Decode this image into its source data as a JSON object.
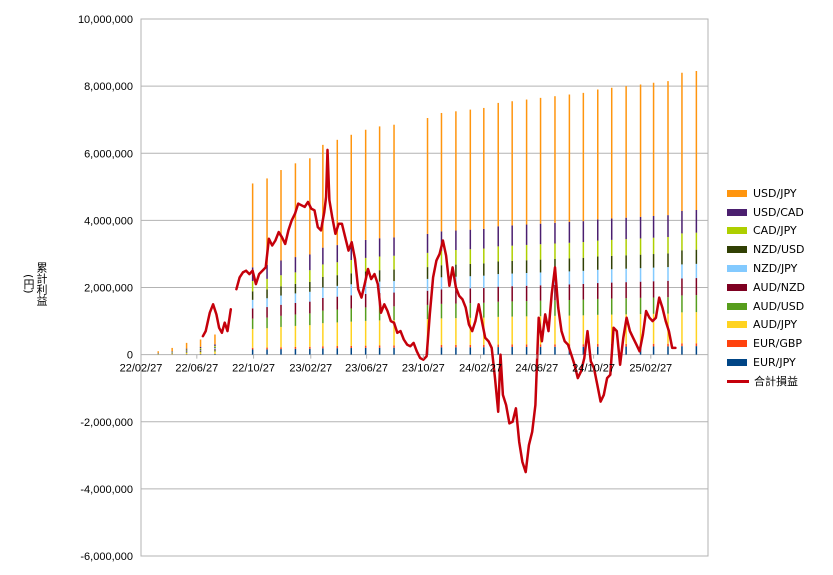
{
  "chart_data": {
    "type": "bar",
    "title": "",
    "xlabel": "",
    "ylabel": "累計利益\n(円)",
    "ylim": [
      -6000000,
      10000000
    ],
    "yticks": [
      "10,000,000",
      "8,000,000",
      "6,000,000",
      "4,000,000",
      "2,000,000",
      "0",
      "-2,000,000",
      "-4,000,000",
      "-6,000,000"
    ],
    "yticks_values": [
      10000000,
      8000000,
      6000000,
      4000000,
      2000000,
      0,
      -2000000,
      -4000000,
      -6000000
    ],
    "x_range": [
      "2022-02-27",
      "2025-06-30"
    ],
    "xticks": [
      "22/02/27",
      "22/06/27",
      "22/10/27",
      "23/02/27",
      "23/06/27",
      "23/10/27",
      "24/02/27",
      "24/06/27",
      "24/10/27",
      "25/02/27"
    ],
    "xticks_dates": [
      "2022-02-27",
      "2022-06-27",
      "2022-10-27",
      "2023-02-27",
      "2023-06-27",
      "2023-10-27",
      "2024-02-27",
      "2024-06-27",
      "2024-10-27",
      "2025-02-27"
    ],
    "grid": "horizontal",
    "legend_position": "right",
    "stack_series": [
      {
        "name": "EUR/JPY",
        "color": "#004586"
      },
      {
        "name": "EUR/GBP",
        "color": "#ff420e"
      },
      {
        "name": "AUD/JPY",
        "color": "#ffd320"
      },
      {
        "name": "AUD/USD",
        "color": "#579d1c"
      },
      {
        "name": "AUD/NZD",
        "color": "#7e0021"
      },
      {
        "name": "NZD/JPY",
        "color": "#83caff"
      },
      {
        "name": "NZD/USD",
        "color": "#314004"
      },
      {
        "name": "CAD/JPY",
        "color": "#aecf00"
      },
      {
        "name": "USD/CAD",
        "color": "#4b1f6f"
      },
      {
        "name": "USD/JPY",
        "color": "#ff950e"
      }
    ],
    "bars": [
      {
        "date": "2022-04-05",
        "total": 100000
      },
      {
        "date": "2022-05-05",
        "total": 200000
      },
      {
        "date": "2022-06-05",
        "total": 350000
      },
      {
        "date": "2022-07-05",
        "total": 450000
      },
      {
        "date": "2022-08-05",
        "total": 600000
      },
      {
        "date": "2022-10-25",
        "total": 5100000
      },
      {
        "date": "2022-11-25",
        "total": 5250000
      },
      {
        "date": "2022-12-25",
        "total": 5500000
      },
      {
        "date": "2023-01-25",
        "total": 5700000
      },
      {
        "date": "2023-02-25",
        "total": 5850000
      },
      {
        "date": "2023-03-25",
        "total": 6250000
      },
      {
        "date": "2023-04-25",
        "total": 6400000
      },
      {
        "date": "2023-05-25",
        "total": 6550000
      },
      {
        "date": "2023-06-25",
        "total": 6700000
      },
      {
        "date": "2023-07-25",
        "total": 6800000
      },
      {
        "date": "2023-08-25",
        "total": 6850000
      },
      {
        "date": "2023-11-05",
        "total": 7050000
      },
      {
        "date": "2023-12-05",
        "total": 7200000
      },
      {
        "date": "2024-01-05",
        "total": 7250000
      },
      {
        "date": "2024-02-05",
        "total": 7300000
      },
      {
        "date": "2024-03-05",
        "total": 7350000
      },
      {
        "date": "2024-04-05",
        "total": 7500000
      },
      {
        "date": "2024-05-05",
        "total": 7550000
      },
      {
        "date": "2024-06-05",
        "total": 7600000
      },
      {
        "date": "2024-07-05",
        "total": 7650000
      },
      {
        "date": "2024-08-05",
        "total": 7700000
      },
      {
        "date": "2024-09-05",
        "total": 7750000
      },
      {
        "date": "2024-10-05",
        "total": 7800000
      },
      {
        "date": "2024-11-05",
        "total": 7900000
      },
      {
        "date": "2024-12-05",
        "total": 7950000
      },
      {
        "date": "2025-01-05",
        "total": 8000000
      },
      {
        "date": "2025-02-05",
        "total": 8050000
      },
      {
        "date": "2025-03-05",
        "total": 8100000
      },
      {
        "date": "2025-04-05",
        "total": 8150000
      },
      {
        "date": "2025-05-05",
        "total": 8400000
      },
      {
        "date": "2025-06-05",
        "total": 8450000
      }
    ],
    "line_series": {
      "name": "合計損益",
      "color": "#c5000b",
      "segments": [
        [
          [
            "2022-07-10",
            550000
          ],
          [
            "2022-07-16",
            700000
          ],
          [
            "2022-07-25",
            1250000
          ],
          [
            "2022-08-01",
            1500000
          ],
          [
            "2022-08-08",
            1200000
          ],
          [
            "2022-08-14",
            800000
          ],
          [
            "2022-08-20",
            650000
          ],
          [
            "2022-08-26",
            950000
          ],
          [
            "2022-09-01",
            700000
          ],
          [
            "2022-09-08",
            1350000
          ]
        ],
        [
          [
            "2022-09-20",
            1950000
          ],
          [
            "2022-09-27",
            2300000
          ],
          [
            "2022-10-04",
            2450000
          ],
          [
            "2022-10-11",
            2500000
          ],
          [
            "2022-10-18",
            2400000
          ],
          [
            "2022-10-25",
            2500000
          ],
          [
            "2022-11-01",
            2100000
          ],
          [
            "2022-11-08",
            2400000
          ],
          [
            "2022-11-15",
            2500000
          ],
          [
            "2022-11-22",
            2600000
          ],
          [
            "2022-11-29",
            3450000
          ],
          [
            "2022-12-06",
            3250000
          ],
          [
            "2022-12-13",
            3400000
          ],
          [
            "2022-12-20",
            3650000
          ],
          [
            "2022-12-27",
            3500000
          ],
          [
            "2023-01-03",
            3300000
          ],
          [
            "2023-01-10",
            3700000
          ],
          [
            "2023-01-17",
            4000000
          ],
          [
            "2023-01-24",
            4200000
          ],
          [
            "2023-01-31",
            4500000
          ],
          [
            "2023-02-07",
            4450000
          ],
          [
            "2023-02-14",
            4400000
          ],
          [
            "2023-02-21",
            4550000
          ],
          [
            "2023-02-28",
            4350000
          ],
          [
            "2023-03-07",
            4300000
          ],
          [
            "2023-03-14",
            3800000
          ],
          [
            "2023-03-21",
            3700000
          ],
          [
            "2023-03-28",
            4250000
          ],
          [
            "2023-04-01",
            4700000
          ],
          [
            "2023-04-04",
            6100000
          ],
          [
            "2023-04-08",
            4600000
          ],
          [
            "2023-04-14",
            4100000
          ],
          [
            "2023-04-21",
            3600000
          ],
          [
            "2023-04-28",
            3900000
          ],
          [
            "2023-05-05",
            3900000
          ],
          [
            "2023-05-12",
            3500000
          ],
          [
            "2023-05-19",
            3100000
          ],
          [
            "2023-05-26",
            3350000
          ],
          [
            "2023-06-02",
            2850000
          ],
          [
            "2023-06-09",
            1950000
          ],
          [
            "2023-06-16",
            1700000
          ],
          [
            "2023-06-23",
            2100000
          ],
          [
            "2023-06-30",
            2550000
          ],
          [
            "2023-07-07",
            2250000
          ],
          [
            "2023-07-14",
            2400000
          ],
          [
            "2023-07-21",
            2100000
          ],
          [
            "2023-07-28",
            1250000
          ],
          [
            "2023-08-04",
            1500000
          ],
          [
            "2023-08-11",
            1300000
          ],
          [
            "2023-08-18",
            1000000
          ],
          [
            "2023-08-25",
            950000
          ],
          [
            "2023-09-01",
            650000
          ],
          [
            "2023-09-08",
            700000
          ],
          [
            "2023-09-15",
            450000
          ],
          [
            "2023-09-22",
            300000
          ],
          [
            "2023-09-29",
            250000
          ],
          [
            "2023-10-06",
            350000
          ],
          [
            "2023-10-13",
            100000
          ],
          [
            "2023-10-20",
            -100000
          ],
          [
            "2023-10-27",
            -150000
          ],
          [
            "2023-11-03",
            -50000
          ],
          [
            "2023-11-10",
            1200000
          ],
          [
            "2023-11-17",
            2300000
          ],
          [
            "2023-11-24",
            2800000
          ],
          [
            "2023-12-01",
            3000000
          ],
          [
            "2023-12-08",
            3400000
          ],
          [
            "2023-12-15",
            2950000
          ],
          [
            "2023-12-22",
            2050000
          ],
          [
            "2023-12-29",
            2600000
          ],
          [
            "2024-01-05",
            2000000
          ],
          [
            "2024-01-12",
            1750000
          ],
          [
            "2024-01-19",
            1650000
          ],
          [
            "2024-01-26",
            1400000
          ],
          [
            "2024-02-02",
            900000
          ],
          [
            "2024-02-09",
            700000
          ],
          [
            "2024-02-16",
            1000000
          ],
          [
            "2024-02-23",
            1500000
          ],
          [
            "2024-03-01",
            1000000
          ],
          [
            "2024-03-08",
            500000
          ],
          [
            "2024-03-15",
            400000
          ],
          [
            "2024-03-22",
            200000
          ],
          [
            "2024-03-29",
            -700000
          ],
          [
            "2024-04-05",
            -1700000
          ],
          [
            "2024-04-10",
            0
          ],
          [
            "2024-04-15",
            -1200000
          ],
          [
            "2024-04-22",
            -1500000
          ],
          [
            "2024-04-29",
            -2050000
          ],
          [
            "2024-05-06",
            -2000000
          ],
          [
            "2024-05-13",
            -1600000
          ],
          [
            "2024-05-20",
            -2600000
          ],
          [
            "2024-05-27",
            -3200000
          ],
          [
            "2024-06-03",
            -3500000
          ],
          [
            "2024-06-10",
            -2700000
          ],
          [
            "2024-06-17",
            -2300000
          ],
          [
            "2024-06-24",
            -1500000
          ],
          [
            "2024-07-01",
            1100000
          ],
          [
            "2024-07-08",
            400000
          ],
          [
            "2024-07-15",
            1200000
          ],
          [
            "2024-07-22",
            700000
          ],
          [
            "2024-07-29",
            1800000
          ],
          [
            "2024-08-05",
            2600000
          ],
          [
            "2024-08-12",
            1400000
          ],
          [
            "2024-08-19",
            700000
          ],
          [
            "2024-08-26",
            400000
          ],
          [
            "2024-09-02",
            300000
          ],
          [
            "2024-09-09",
            0
          ],
          [
            "2024-09-16",
            -300000
          ],
          [
            "2024-09-23",
            -700000
          ],
          [
            "2024-09-30",
            -500000
          ],
          [
            "2024-10-07",
            -100000
          ],
          [
            "2024-10-14",
            700000
          ],
          [
            "2024-10-21",
            -200000
          ],
          [
            "2024-10-28",
            -400000
          ],
          [
            "2024-11-04",
            -900000
          ],
          [
            "2024-11-11",
            -1400000
          ],
          [
            "2024-11-18",
            -1200000
          ],
          [
            "2024-11-25",
            -700000
          ],
          [
            "2024-12-02",
            -600000
          ],
          [
            "2024-12-09",
            800000
          ],
          [
            "2024-12-16",
            700000
          ],
          [
            "2024-12-23",
            -300000
          ],
          [
            "2024-12-30",
            500000
          ],
          [
            "2025-01-06",
            1100000
          ],
          [
            "2025-01-13",
            700000
          ],
          [
            "2025-01-20",
            500000
          ],
          [
            "2025-01-27",
            300000
          ],
          [
            "2025-02-03",
            100000
          ],
          [
            "2025-02-10",
            600000
          ],
          [
            "2025-02-17",
            1300000
          ],
          [
            "2025-02-24",
            1100000
          ],
          [
            "2025-03-03",
            1000000
          ],
          [
            "2025-03-10",
            1100000
          ],
          [
            "2025-03-17",
            1700000
          ],
          [
            "2025-03-24",
            1400000
          ],
          [
            "2025-03-31",
            1000000
          ],
          [
            "2025-04-07",
            700000
          ],
          [
            "2025-04-14",
            200000
          ],
          [
            "2025-04-21",
            200000
          ]
        ]
      ]
    }
  }
}
